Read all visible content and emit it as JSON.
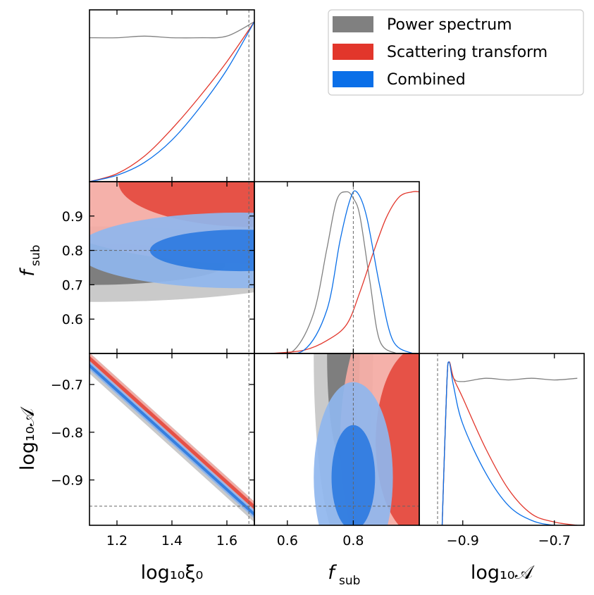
{
  "chart_data": {
    "type": "corner",
    "parameters": [
      "log10_xi0",
      "f_sub",
      "log10_A"
    ],
    "axis_labels": {
      "x": [
        "log₁₀ξ₀",
        "f",
        "log₁₀𝒜"
      ],
      "y": [
        "f",
        "log₁₀𝒜"
      ],
      "sub": "sub"
    },
    "ranges": {
      "log10_xi0": [
        1.1,
        1.7
      ],
      "f_sub": [
        0.5,
        1.0
      ],
      "log10_A": [
        -0.995,
        -0.635
      ]
    },
    "ticks": {
      "log10_xi0": {
        "values": [
          1.2,
          1.4,
          1.6
        ],
        "labels": [
          "1.2",
          "1.4",
          "1.6"
        ]
      },
      "f_sub": {
        "values": [
          0.6,
          0.7,
          0.8,
          0.9
        ],
        "labels": [
          "0.6",
          "0.7",
          "0.8",
          "0.9"
        ]
      },
      "f_sub_x": {
        "values": [
          0.6,
          0.8
        ],
        "labels": [
          "0.6",
          "0.8"
        ]
      },
      "log10_A": {
        "values": [
          -0.9,
          -0.8,
          -0.7
        ],
        "labels": [
          "−0.9",
          "−0.8",
          "−0.7"
        ]
      },
      "log10_A_x": {
        "values": [
          -0.9,
          -0.7
        ],
        "labels": [
          "−0.9",
          "−0.7"
        ]
      }
    },
    "truth": {
      "log10_xi0": 1.68,
      "f_sub": 0.8,
      "log10_A": -0.955
    },
    "legend": {
      "placement": "top-right",
      "entries": [
        {
          "label": "Power spectrum",
          "color": "#808080"
        },
        {
          "label": "Scattering transform",
          "color": "#e2362b"
        },
        {
          "label": "Combined",
          "color": "#0a6fe8"
        }
      ]
    },
    "series": [
      {
        "name": "Power spectrum",
        "color": "#808080",
        "marginal_log10_xi0": {
          "x": [
            1.1,
            1.2,
            1.3,
            1.4,
            1.5,
            1.6,
            1.7
          ],
          "y": [
            0.9,
            0.9,
            0.91,
            0.9,
            0.9,
            0.91,
            1.0
          ]
        },
        "marginal_f_sub": {
          "x": [
            0.55,
            0.62,
            0.68,
            0.72,
            0.75,
            0.78,
            0.8,
            0.82,
            0.85,
            0.88,
            0.93
          ],
          "y": [
            0.0,
            0.02,
            0.25,
            0.65,
            0.95,
            1.0,
            0.96,
            0.85,
            0.45,
            0.08,
            0.0
          ]
        },
        "marginal_log10_A": {
          "x": [
            -0.945,
            -0.935,
            -0.93,
            -0.92,
            -0.9,
            -0.85,
            -0.8,
            -0.75,
            -0.7,
            -0.65
          ],
          "y": [
            0.0,
            0.85,
            1.0,
            0.9,
            0.88,
            0.9,
            0.89,
            0.9,
            0.89,
            0.9
          ]
        },
        "xi0_fsub": {
          "center": [
            1.1,
            0.76
          ],
          "sigma": [
            0.45,
            0.055
          ]
        },
        "fsub_A": {
          "center": [
            0.77,
            -0.64
          ],
          "sigma": [
            0.045,
            0.2
          ]
        },
        "xi0_A": {
          "intercept": -0.655,
          "slope": -0.52,
          "width": [
            0.012,
            0.022
          ]
        }
      },
      {
        "name": "Scattering transform",
        "color": "#e2362b",
        "marginal_log10_xi0": {
          "x": [
            1.1,
            1.2,
            1.3,
            1.4,
            1.5,
            1.6,
            1.7
          ],
          "y": [
            0.0,
            0.05,
            0.16,
            0.33,
            0.53,
            0.75,
            1.0
          ]
        },
        "marginal_f_sub": {
          "x": [
            0.55,
            0.65,
            0.72,
            0.78,
            0.82,
            0.86,
            0.9,
            0.94,
            0.98,
            1.0
          ],
          "y": [
            0.0,
            0.02,
            0.08,
            0.18,
            0.38,
            0.62,
            0.84,
            0.97,
            1.0,
            1.0
          ]
        },
        "marginal_log10_A": {
          "x": [
            -0.945,
            -0.935,
            -0.93,
            -0.92,
            -0.9,
            -0.85,
            -0.8,
            -0.75,
            -0.7,
            -0.65
          ],
          "y": [
            0.0,
            0.85,
            1.0,
            0.9,
            0.78,
            0.47,
            0.22,
            0.07,
            0.02,
            0.0
          ]
        },
        "xi0_fsub": {
          "center": [
            1.7,
            1.0
          ],
          "sigma": [
            0.45,
            0.12
          ]
        },
        "fsub_A": {
          "center": [
            1.0,
            -0.82
          ],
          "sigma": [
            0.12,
            0.18
          ]
        },
        "xi0_A": {
          "intercept": -0.645,
          "slope": -0.52,
          "width": [
            0.005,
            0.011
          ]
        }
      },
      {
        "name": "Combined",
        "color": "#0a6fe8",
        "marginal_log10_xi0": {
          "x": [
            1.1,
            1.2,
            1.3,
            1.4,
            1.5,
            1.6,
            1.7
          ],
          "y": [
            0.0,
            0.04,
            0.12,
            0.26,
            0.46,
            0.7,
            1.0
          ]
        },
        "marginal_f_sub": {
          "x": [
            0.55,
            0.65,
            0.72,
            0.76,
            0.79,
            0.81,
            0.84,
            0.88,
            0.92,
            0.98
          ],
          "y": [
            0.0,
            0.02,
            0.27,
            0.7,
            0.95,
            1.0,
            0.85,
            0.42,
            0.08,
            0.0
          ]
        },
        "marginal_log10_A": {
          "x": [
            -0.945,
            -0.935,
            -0.93,
            -0.92,
            -0.9,
            -0.85,
            -0.8,
            -0.75,
            -0.7,
            -0.65
          ],
          "y": [
            0.0,
            0.85,
            1.0,
            0.85,
            0.62,
            0.32,
            0.12,
            0.03,
            0.0,
            0.0
          ]
        },
        "xi0_fsub": {
          "center": [
            1.65,
            0.8
          ],
          "sigma": [
            0.3,
            0.055
          ]
        },
        "fsub_A": {
          "center": [
            0.8,
            -0.895
          ],
          "sigma": [
            0.06,
            0.1
          ]
        },
        "xi0_A": {
          "intercept": -0.66,
          "slope": -0.52,
          "width": [
            0.004,
            0.009
          ]
        }
      }
    ]
  }
}
